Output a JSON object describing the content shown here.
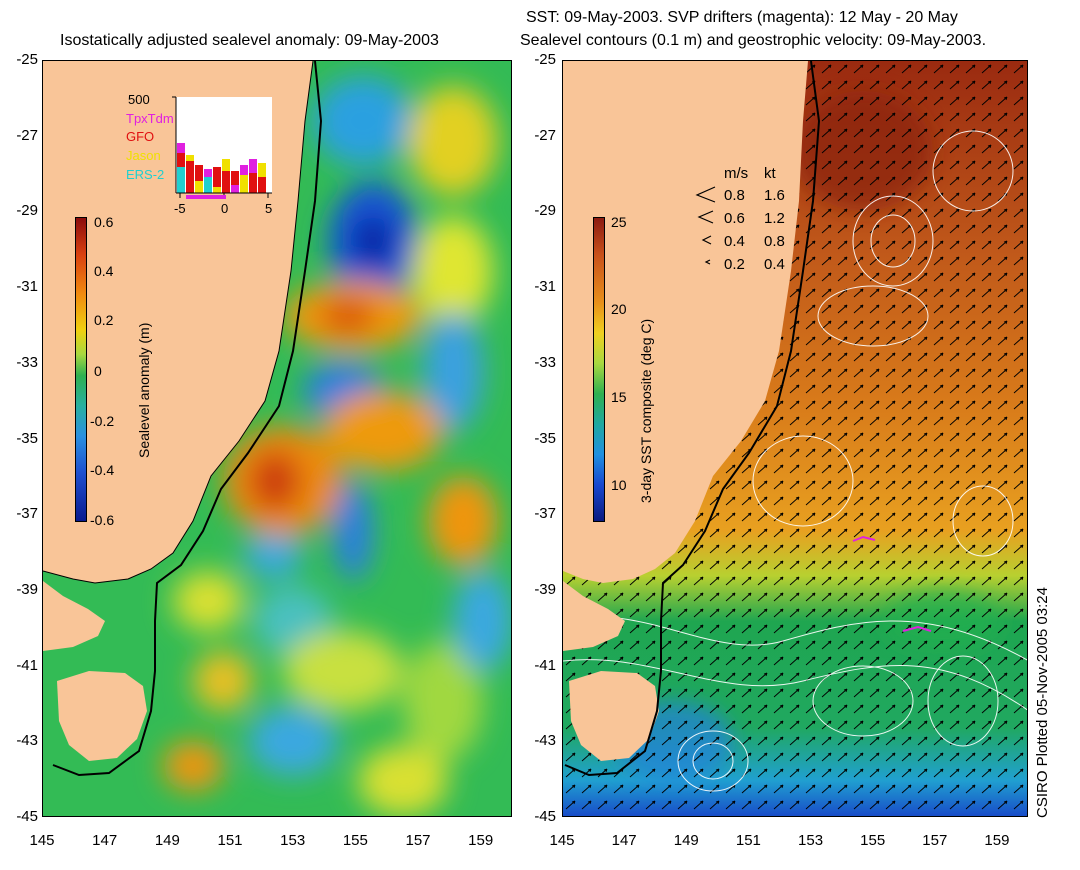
{
  "left_panel": {
    "title": "Isostatically adjusted sealevel anomaly: 09-May-2003",
    "colorbar": {
      "label": "Sealevel anomaly (m)",
      "ticks": [
        "0.6",
        "0.4",
        "0.2",
        "0",
        "-0.2",
        "-0.4",
        "-0.6"
      ]
    },
    "histogram": {
      "ymax_label": "500",
      "legend": [
        {
          "name": "TpxTdm",
          "color": "#e020e0"
        },
        {
          "name": "GFO",
          "color": "#e01010"
        },
        {
          "name": "Jason",
          "color": "#f0e000"
        },
        {
          "name": "ERS-2",
          "color": "#20d0d0"
        }
      ],
      "xticks": [
        "-5",
        "0",
        "5"
      ]
    }
  },
  "right_panel": {
    "title_line1": "SST: 09-May-2003. SVP drifters (magenta): 12 May - 20 May",
    "title_line2": "Sealevel contours (0.1 m) and geostrophic velocity: 09-May-2003.",
    "colorbar": {
      "label": "3-day SST composite (deg C)",
      "ticks": [
        "25",
        "20",
        "15",
        "10"
      ]
    },
    "velocity_legend": {
      "header_ms": "m/s",
      "header_kt": "kt",
      "rows": [
        {
          "ms": "0.8",
          "kt": "1.6"
        },
        {
          "ms": "0.6",
          "kt": "1.2"
        },
        {
          "ms": "0.4",
          "kt": "0.8"
        },
        {
          "ms": "0.2",
          "kt": "0.4"
        }
      ]
    }
  },
  "axes": {
    "yticks": [
      "-25",
      "-27",
      "-29",
      "-31",
      "-33",
      "-35",
      "-37",
      "-39",
      "-41",
      "-43",
      "-45"
    ],
    "xticks": [
      "145",
      "147",
      "149",
      "151",
      "153",
      "155",
      "157",
      "159"
    ]
  },
  "credit": "CSIRO Plotted 05-Nov-2005 03:24",
  "colors": {
    "land": "#f9c598",
    "sla_ocean": "#33bb55",
    "sst_warm": "#c0581a",
    "sst_cool": "#1fa650"
  }
}
